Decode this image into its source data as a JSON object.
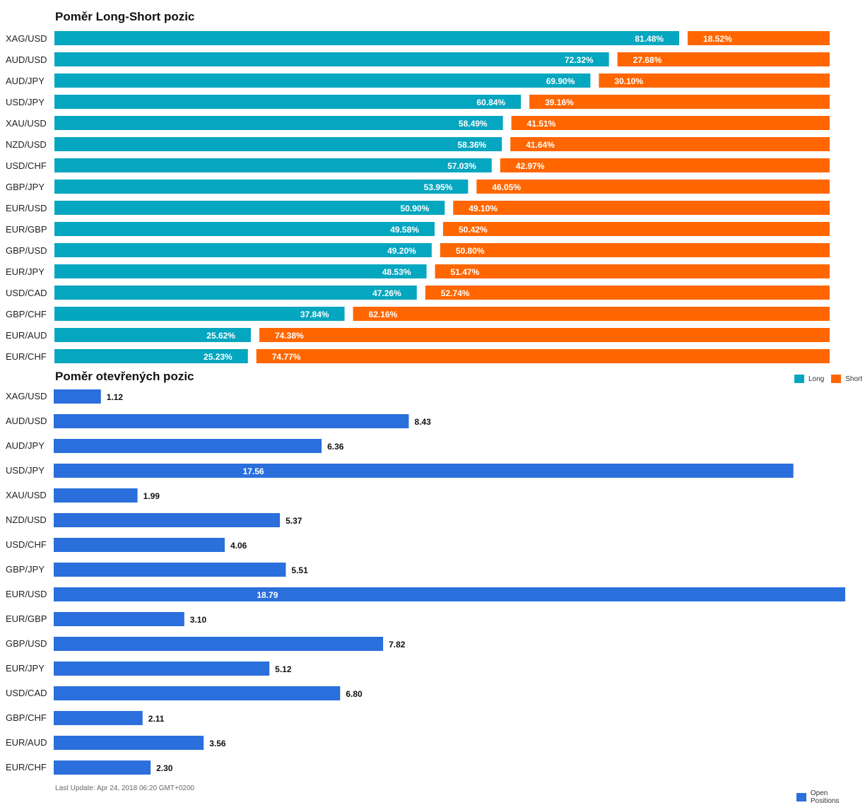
{
  "chart_data": [
    {
      "type": "bar",
      "orientation": "horizontal-stacked",
      "title": "Poměr Long-Short pozic",
      "categories": [
        "XAG/USD",
        "AUD/USD",
        "AUD/JPY",
        "USD/JPY",
        "XAU/USD",
        "NZD/USD",
        "USD/CHF",
        "GBP/JPY",
        "EUR/USD",
        "EUR/GBP",
        "GBP/USD",
        "EUR/JPY",
        "USD/CAD",
        "GBP/CHF",
        "EUR/AUD",
        "EUR/CHF"
      ],
      "series": [
        {
          "name": "Long",
          "color": "#05a6bf",
          "values": [
            81.48,
            72.32,
            69.9,
            60.84,
            58.49,
            58.36,
            57.03,
            53.95,
            50.9,
            49.58,
            49.2,
            48.53,
            47.26,
            37.84,
            25.62,
            25.23
          ],
          "labels": [
            "81.48%",
            "72.32%",
            "69.90%",
            "60.84%",
            "58.49%",
            "58.36%",
            "57.03%",
            "53.95%",
            "50.90%",
            "49.58%",
            "49.20%",
            "48.53%",
            "47.26%",
            "37.84%",
            "25.62%",
            "25.23%"
          ]
        },
        {
          "name": "Short",
          "color": "#ff6600",
          "values": [
            18.52,
            27.68,
            30.1,
            39.16,
            41.51,
            41.64,
            42.97,
            46.05,
            49.1,
            50.42,
            50.8,
            51.47,
            52.74,
            62.16,
            74.38,
            74.77
          ],
          "labels": [
            "18.52%",
            "27.68%",
            "30.10%",
            "39.16%",
            "41.51%",
            "41.64%",
            "42.97%",
            "46.05%",
            "49.10%",
            "50.42%",
            "50.80%",
            "51.47%",
            "52.74%",
            "62.16%",
            "74.38%",
            "74.77%"
          ]
        }
      ],
      "xlim": [
        0,
        100
      ],
      "legend": "bottom-right",
      "grid": false
    },
    {
      "type": "bar",
      "orientation": "horizontal",
      "title": "Poměr otevřených pozic",
      "categories": [
        "XAG/USD",
        "AUD/USD",
        "AUD/JPY",
        "USD/JPY",
        "XAU/USD",
        "NZD/USD",
        "USD/CHF",
        "GBP/JPY",
        "EUR/USD",
        "EUR/GBP",
        "GBP/USD",
        "EUR/JPY",
        "USD/CAD",
        "GBP/CHF",
        "EUR/AUD",
        "EUR/CHF"
      ],
      "series": [
        {
          "name": "Open Positions",
          "color": "#2a6fdb",
          "values": [
            1.12,
            8.43,
            6.36,
            17.56,
            1.99,
            5.37,
            4.06,
            5.51,
            18.79,
            3.1,
            7.82,
            5.12,
            6.8,
            2.11,
            3.56,
            2.3
          ],
          "labels": [
            "1.12",
            "8.43",
            "6.36",
            "17.56",
            "1.99",
            "5.37",
            "4.06",
            "5.51",
            "18.79",
            "3.10",
            "7.82",
            "5.12",
            "6.80",
            "2.11",
            "3.56",
            "2.30"
          ]
        }
      ],
      "xlim": [
        0,
        18.79
      ],
      "legend": "bottom-right",
      "grid": false
    }
  ],
  "footer": {
    "last_update": "Last Update: Apr 24, 2018 06:20 GMT+0200"
  }
}
